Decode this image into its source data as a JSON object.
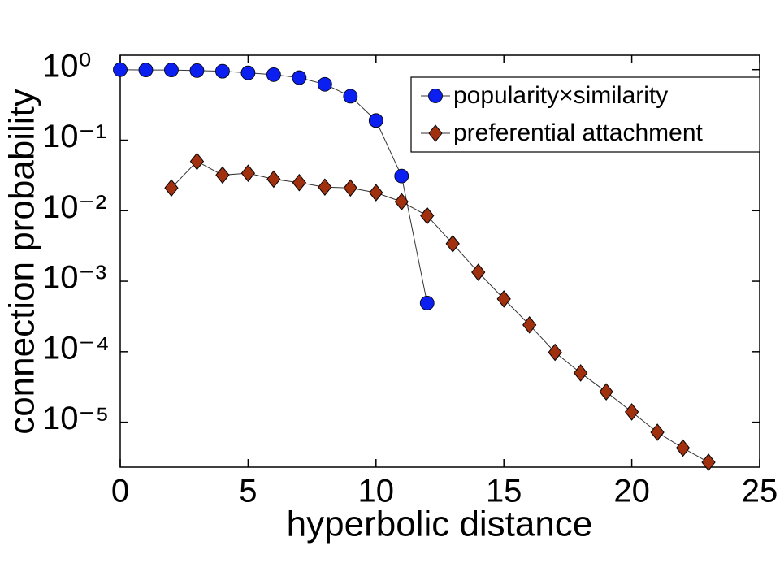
{
  "chart_data": {
    "type": "line",
    "xlabel": "hyperbolic distance",
    "ylabel": "connection probability",
    "xlim": [
      0,
      25
    ],
    "xticks": [
      0,
      5,
      10,
      15,
      20,
      25
    ],
    "ylim": [
      2.3e-06,
      1.6
    ],
    "yscale": "log",
    "yticks": [
      {
        "value": 1,
        "label": "10⁰"
      },
      {
        "value": 0.1,
        "label": "10⁻¹"
      },
      {
        "value": 0.01,
        "label": "10⁻²"
      },
      {
        "value": 0.001,
        "label": "10⁻³"
      },
      {
        "value": 0.0001,
        "label": "10⁻⁴"
      },
      {
        "value": 1e-05,
        "label": "10⁻⁵"
      }
    ],
    "legend": "upper right",
    "series": [
      {
        "name": "popularity×similarity",
        "color": "#0a1ff0",
        "marker": "circle",
        "x": [
          0,
          1,
          2,
          3,
          4,
          5,
          6,
          7,
          8,
          9,
          10,
          11,
          12
        ],
        "values": [
          1.0,
          0.99,
          0.99,
          0.97,
          0.95,
          0.9,
          0.85,
          0.77,
          0.62,
          0.42,
          0.19,
          0.031,
          0.00049
        ]
      },
      {
        "name": "preferential attachment",
        "color": "#a0300e",
        "marker": "diamond",
        "x": [
          2,
          3,
          4,
          5,
          6,
          7,
          8,
          9,
          10,
          11,
          12,
          13,
          14,
          15,
          16,
          17,
          18,
          19,
          20,
          21,
          22,
          23
        ],
        "values": [
          0.021,
          0.05,
          0.032,
          0.034,
          0.028,
          0.025,
          0.0216,
          0.021,
          0.018,
          0.0134,
          0.0085,
          0.0034,
          0.00134,
          0.00056,
          0.00024,
          9.8e-05,
          5e-05,
          2.7e-05,
          1.4e-05,
          7.2e-06,
          4.3e-06,
          2.7e-06
        ]
      }
    ]
  }
}
